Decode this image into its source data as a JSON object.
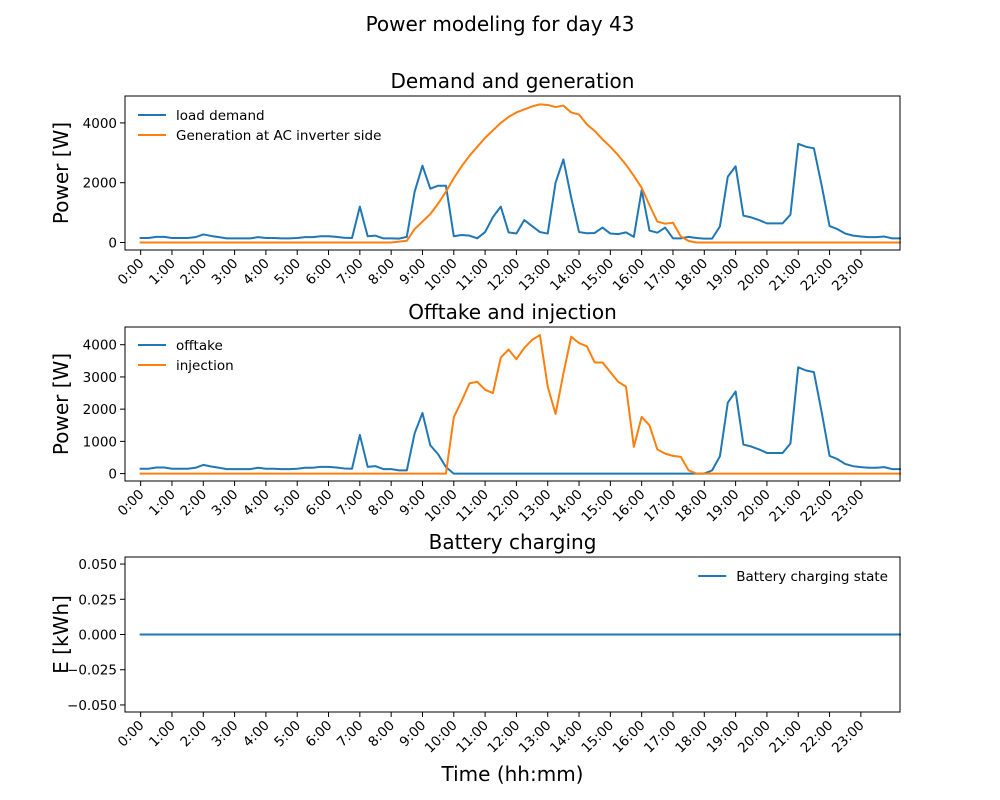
{
  "figure_title": "Power modeling for day 43",
  "chart_data": [
    {
      "type": "line",
      "title": "Demand and generation",
      "xlabel": "",
      "ylabel": "Power [W]",
      "ylim": [
        -250,
        4900
      ],
      "yticks": [
        0,
        2000,
        4000
      ],
      "ytick_labels": [
        "0",
        "2000",
        "4000"
      ],
      "xlim": [
        -30,
        1455
      ],
      "xticks": [
        0,
        60,
        120,
        180,
        240,
        300,
        360,
        420,
        480,
        540,
        600,
        660,
        720,
        780,
        840,
        900,
        960,
        1020,
        1080,
        1140,
        1200,
        1260,
        1320,
        1380
      ],
      "xtick_labels": [
        "0:00",
        "1:00",
        "2:00",
        "3:00",
        "4:00",
        "5:00",
        "6:00",
        "7:00",
        "8:00",
        "9:00",
        "10:00",
        "11:00",
        "12:00",
        "13:00",
        "14:00",
        "15:00",
        "16:00",
        "17:00",
        "18:00",
        "19:00",
        "20:00",
        "21:00",
        "22:00",
        "23:00"
      ],
      "legend_position": "upper-left",
      "x_step_minutes": 15,
      "series": [
        {
          "name": "load demand",
          "color": "#1f77b4",
          "values": [
            150,
            150,
            190,
            190,
            150,
            150,
            150,
            180,
            270,
            220,
            180,
            140,
            140,
            140,
            140,
            180,
            150,
            150,
            140,
            140,
            150,
            180,
            180,
            210,
            210,
            190,
            160,
            150,
            1200,
            210,
            230,
            140,
            140,
            130,
            190,
            1700,
            2570,
            1800,
            1900,
            1900,
            210,
            250,
            230,
            140,
            350,
            850,
            1200,
            340,
            300,
            750,
            550,
            350,
            300,
            2000,
            2780,
            1500,
            350,
            310,
            320,
            500,
            300,
            280,
            340,
            190,
            1750,
            400,
            330,
            500,
            140,
            140,
            190,
            150,
            130,
            130,
            540,
            2200,
            2550,
            900,
            840,
            750,
            640,
            640,
            640,
            930,
            3300,
            3200,
            3150,
            1900,
            550,
            450,
            300,
            230,
            200,
            180,
            180,
            200,
            140,
            140
          ]
        },
        {
          "name": "Generation at AC inverter side",
          "color": "#ff7f0e",
          "values": [
            0,
            0,
            0,
            0,
            0,
            0,
            0,
            0,
            0,
            0,
            0,
            0,
            0,
            0,
            0,
            0,
            0,
            0,
            0,
            0,
            0,
            0,
            0,
            0,
            0,
            0,
            0,
            0,
            0,
            0,
            0,
            0,
            0,
            30,
            60,
            450,
            700,
            950,
            1300,
            1700,
            2150,
            2550,
            2900,
            3200,
            3500,
            3750,
            4000,
            4200,
            4350,
            4450,
            4550,
            4620,
            4600,
            4530,
            4580,
            4350,
            4280,
            3950,
            3730,
            3450,
            3200,
            2920,
            2600,
            2230,
            1830,
            1250,
            700,
            630,
            660,
            200,
            50,
            0,
            0,
            0,
            0,
            0,
            0,
            0,
            0,
            0,
            0,
            0,
            0,
            0,
            0,
            0,
            0,
            0,
            0,
            0,
            0,
            0,
            0,
            0,
            0,
            0,
            0,
            0
          ]
        }
      ]
    },
    {
      "type": "line",
      "title": "Offtake and injection",
      "xlabel": "",
      "ylabel": "Power [W]",
      "ylim": [
        -230,
        4550
      ],
      "yticks": [
        0,
        1000,
        2000,
        3000,
        4000
      ],
      "ytick_labels": [
        "0",
        "1000",
        "2000",
        "3000",
        "4000"
      ],
      "xlim": [
        -30,
        1455
      ],
      "xticks": [
        0,
        60,
        120,
        180,
        240,
        300,
        360,
        420,
        480,
        540,
        600,
        660,
        720,
        780,
        840,
        900,
        960,
        1020,
        1080,
        1140,
        1200,
        1260,
        1320,
        1380
      ],
      "xtick_labels": [
        "0:00",
        "1:00",
        "2:00",
        "3:00",
        "4:00",
        "5:00",
        "6:00",
        "7:00",
        "8:00",
        "9:00",
        "10:00",
        "11:00",
        "12:00",
        "13:00",
        "14:00",
        "15:00",
        "16:00",
        "17:00",
        "18:00",
        "19:00",
        "20:00",
        "21:00",
        "22:00",
        "23:00"
      ],
      "legend_position": "upper-left",
      "x_step_minutes": 15,
      "series": [
        {
          "name": "offtake",
          "color": "#1f77b4",
          "values": [
            150,
            150,
            190,
            190,
            150,
            150,
            150,
            180,
            270,
            220,
            180,
            140,
            140,
            140,
            140,
            180,
            150,
            150,
            140,
            140,
            150,
            180,
            180,
            210,
            210,
            190,
            160,
            150,
            1200,
            210,
            230,
            140,
            140,
            100,
            100,
            1250,
            1880,
            880,
            600,
            200,
            0,
            0,
            0,
            0,
            0,
            0,
            0,
            0,
            0,
            0,
            0,
            0,
            0,
            0,
            0,
            0,
            0,
            0,
            0,
            0,
            0,
            0,
            0,
            0,
            0,
            0,
            0,
            0,
            0,
            0,
            0,
            0,
            0,
            100,
            540,
            2200,
            2550,
            900,
            840,
            750,
            640,
            640,
            640,
            930,
            3300,
            3200,
            3150,
            1900,
            550,
            450,
            300,
            230,
            200,
            180,
            180,
            200,
            140,
            140
          ]
        },
        {
          "name": "injection",
          "color": "#ff7f0e",
          "values": [
            0,
            0,
            0,
            0,
            0,
            0,
            0,
            0,
            0,
            0,
            0,
            0,
            0,
            0,
            0,
            0,
            0,
            0,
            0,
            0,
            0,
            0,
            0,
            0,
            0,
            0,
            0,
            0,
            0,
            0,
            0,
            0,
            0,
            0,
            0,
            0,
            0,
            0,
            0,
            0,
            1750,
            2250,
            2800,
            2850,
            2600,
            2500,
            3600,
            3850,
            3550,
            3900,
            4150,
            4300,
            2700,
            1850,
            3100,
            4250,
            4050,
            3950,
            3450,
            3450,
            3150,
            2850,
            2700,
            830,
            1760,
            1500,
            750,
            620,
            550,
            520,
            100,
            0,
            0,
            0,
            0,
            0,
            0,
            0,
            0,
            0,
            0,
            0,
            0,
            0,
            0,
            0,
            0,
            0,
            0,
            0,
            0,
            0,
            0,
            0,
            0,
            0,
            0,
            0
          ]
        }
      ]
    },
    {
      "type": "line",
      "title": "Battery charging",
      "xlabel": "Time (hh:mm)",
      "ylabel": "E [kWh]",
      "ylim": [
        -0.055,
        0.055
      ],
      "yticks": [
        -0.05,
        -0.025,
        0.0,
        0.025,
        0.05
      ],
      "ytick_labels": [
        "−0.050",
        "−0.025",
        "0.000",
        "0.025",
        "0.050"
      ],
      "xlim": [
        -30,
        1455
      ],
      "xticks": [
        0,
        60,
        120,
        180,
        240,
        300,
        360,
        420,
        480,
        540,
        600,
        660,
        720,
        780,
        840,
        900,
        960,
        1020,
        1080,
        1140,
        1200,
        1260,
        1320,
        1380
      ],
      "xtick_labels": [
        "0:00",
        "1:00",
        "2:00",
        "3:00",
        "4:00",
        "5:00",
        "6:00",
        "7:00",
        "8:00",
        "9:00",
        "10:00",
        "11:00",
        "12:00",
        "13:00",
        "14:00",
        "15:00",
        "16:00",
        "17:00",
        "18:00",
        "19:00",
        "20:00",
        "21:00",
        "22:00",
        "23:00"
      ],
      "legend_position": "upper-right",
      "x_step_minutes": 15,
      "series": [
        {
          "name": "Battery charging state",
          "color": "#1f77b4",
          "values": [
            0,
            0,
            0,
            0,
            0,
            0,
            0,
            0,
            0,
            0,
            0,
            0,
            0,
            0,
            0,
            0,
            0,
            0,
            0,
            0,
            0,
            0,
            0,
            0,
            0,
            0,
            0,
            0,
            0,
            0,
            0,
            0,
            0,
            0,
            0,
            0,
            0,
            0,
            0,
            0,
            0,
            0,
            0,
            0,
            0,
            0,
            0,
            0,
            0,
            0,
            0,
            0,
            0,
            0,
            0,
            0,
            0,
            0,
            0,
            0,
            0,
            0,
            0,
            0,
            0,
            0,
            0,
            0,
            0,
            0,
            0,
            0,
            0,
            0,
            0,
            0,
            0,
            0,
            0,
            0,
            0,
            0,
            0,
            0,
            0,
            0,
            0,
            0,
            0,
            0,
            0,
            0,
            0,
            0,
            0,
            0,
            0,
            0
          ]
        }
      ]
    }
  ]
}
